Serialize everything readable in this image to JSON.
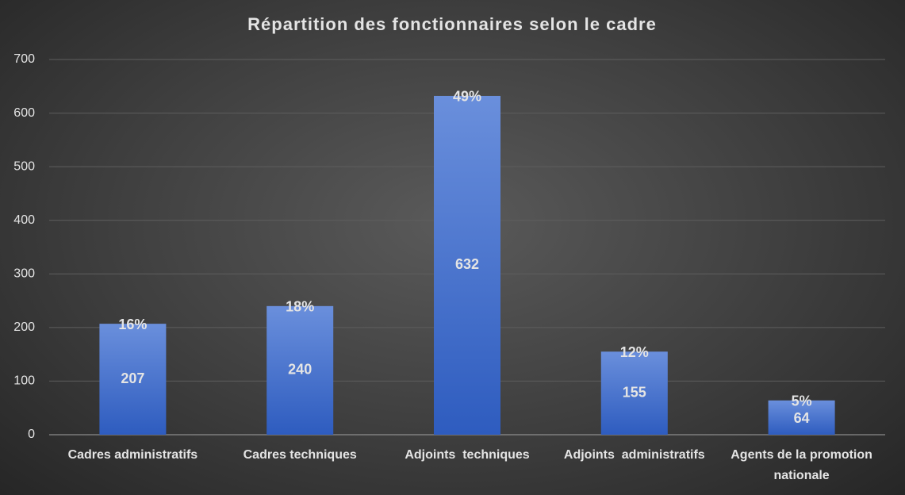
{
  "chart_data": {
    "type": "bar",
    "title": "Répartition des fonctionnaires selon le cadre",
    "categories": [
      "Cadres administratifs",
      "Cadres techniques",
      "Adjoints  techniques",
      "Adjoints  administratifs",
      "Agents de la promotion nationale"
    ],
    "values": [
      207,
      240,
      632,
      155,
      64
    ],
    "share": {
      "values": [
        16,
        18,
        49,
        12,
        5
      ],
      "value_labels": [
        "16%",
        "18%",
        "49%",
        "12%",
        "5%"
      ]
    },
    "color": "#4169c8",
    "ylim": [
      0,
      700
    ],
    "yticks": [
      0,
      100,
      200,
      300,
      400,
      500,
      600,
      700
    ],
    "grid": true
  }
}
